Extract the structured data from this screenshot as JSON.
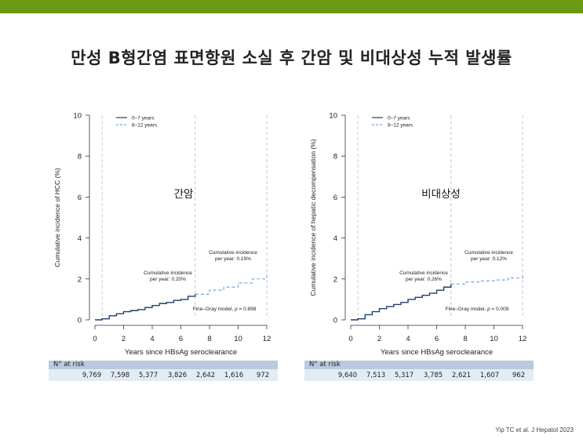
{
  "title": "만성 B형간염 표면항원 소실 후 간암 및 비대상성 누적 발생률",
  "citation": "Yip TC et al. J Hepatol 2023",
  "colors": {
    "topbar": "#6a9a12",
    "solid": "#1f3e6b",
    "dashed": "#7aa6d6"
  },
  "chart_data": [
    {
      "type": "line",
      "panel_label": "간암",
      "ylabel": "Cumulative incidence of HCC (%)",
      "xlabel": "Years since HBsAg seroclearance",
      "xlim": [
        0,
        12
      ],
      "ylim": [
        0,
        10
      ],
      "xticks": [
        0,
        2,
        4,
        6,
        8,
        10,
        12
      ],
      "yticks": [
        0,
        2,
        4,
        6,
        8,
        10
      ],
      "vlines": [
        0.5,
        7,
        12
      ],
      "legend": [
        "0–7 years",
        "8–12 years"
      ],
      "series": [
        {
          "name": "0–7 years",
          "x": [
            0,
            0.5,
            1,
            1.5,
            2,
            2.5,
            3,
            3.5,
            4,
            4.5,
            5,
            5.5,
            6,
            6.5,
            7
          ],
          "y": [
            0,
            0.05,
            0.2,
            0.3,
            0.4,
            0.45,
            0.5,
            0.6,
            0.7,
            0.8,
            0.85,
            0.95,
            1.0,
            1.15,
            1.25
          ]
        },
        {
          "name": "8–12 years",
          "x": [
            7,
            8,
            9,
            10,
            11,
            12
          ],
          "y": [
            1.25,
            1.45,
            1.6,
            1.8,
            2.0,
            2.2
          ]
        }
      ],
      "annotations": [
        {
          "text": [
            "Cumulative incidence",
            "per year: 0.20%"
          ]
        },
        {
          "text": [
            "Cumulative incidence",
            "per year: 0.19%"
          ]
        },
        {
          "text": [
            "Fine–Gray model, ",
            "p",
            " = 0.898"
          ]
        }
      ],
      "at_risk": {
        "header": "N° at risk",
        "values": [
          "9,769",
          "7,598",
          "5,377",
          "3,826",
          "2,642",
          "1,616",
          "972"
        ]
      }
    },
    {
      "type": "line",
      "panel_label": "비대상성",
      "ylabel": "Cumulative incidence of hepatic decompensation (%)",
      "xlabel": "Years since HBsAg seroclearance",
      "xlim": [
        0,
        12
      ],
      "ylim": [
        0,
        10
      ],
      "xticks": [
        0,
        2,
        4,
        6,
        8,
        10,
        12
      ],
      "yticks": [
        0,
        2,
        4,
        6,
        8,
        10
      ],
      "vlines": [
        0.5,
        7,
        12
      ],
      "legend": [
        "0–7 years",
        "8–12 years"
      ],
      "series": [
        {
          "name": "0–7 years",
          "x": [
            0,
            0.5,
            1,
            1.5,
            2,
            2.5,
            3,
            3.5,
            4,
            4.5,
            5,
            5.5,
            6,
            6.5,
            7
          ],
          "y": [
            0,
            0.05,
            0.25,
            0.4,
            0.55,
            0.65,
            0.75,
            0.85,
            1.0,
            1.1,
            1.2,
            1.3,
            1.45,
            1.6,
            1.75
          ]
        },
        {
          "name": "8–12 years",
          "x": [
            7,
            8,
            9,
            10,
            11,
            12
          ],
          "y": [
            1.75,
            1.85,
            1.9,
            1.95,
            2.05,
            2.3
          ]
        }
      ],
      "annotations": [
        {
          "text": [
            "Cumulative incidence",
            "per year: 0.26%"
          ]
        },
        {
          "text": [
            "Cumulative incidence",
            "per year: 0.12%"
          ]
        },
        {
          "text": [
            "Fine–Gray model, ",
            "p",
            " = 0.009"
          ]
        }
      ],
      "at_risk": {
        "header": "N° at risk",
        "values": [
          "9,640",
          "7,513",
          "5,317",
          "3,785",
          "2,621",
          "1,607",
          "962"
        ]
      }
    }
  ]
}
